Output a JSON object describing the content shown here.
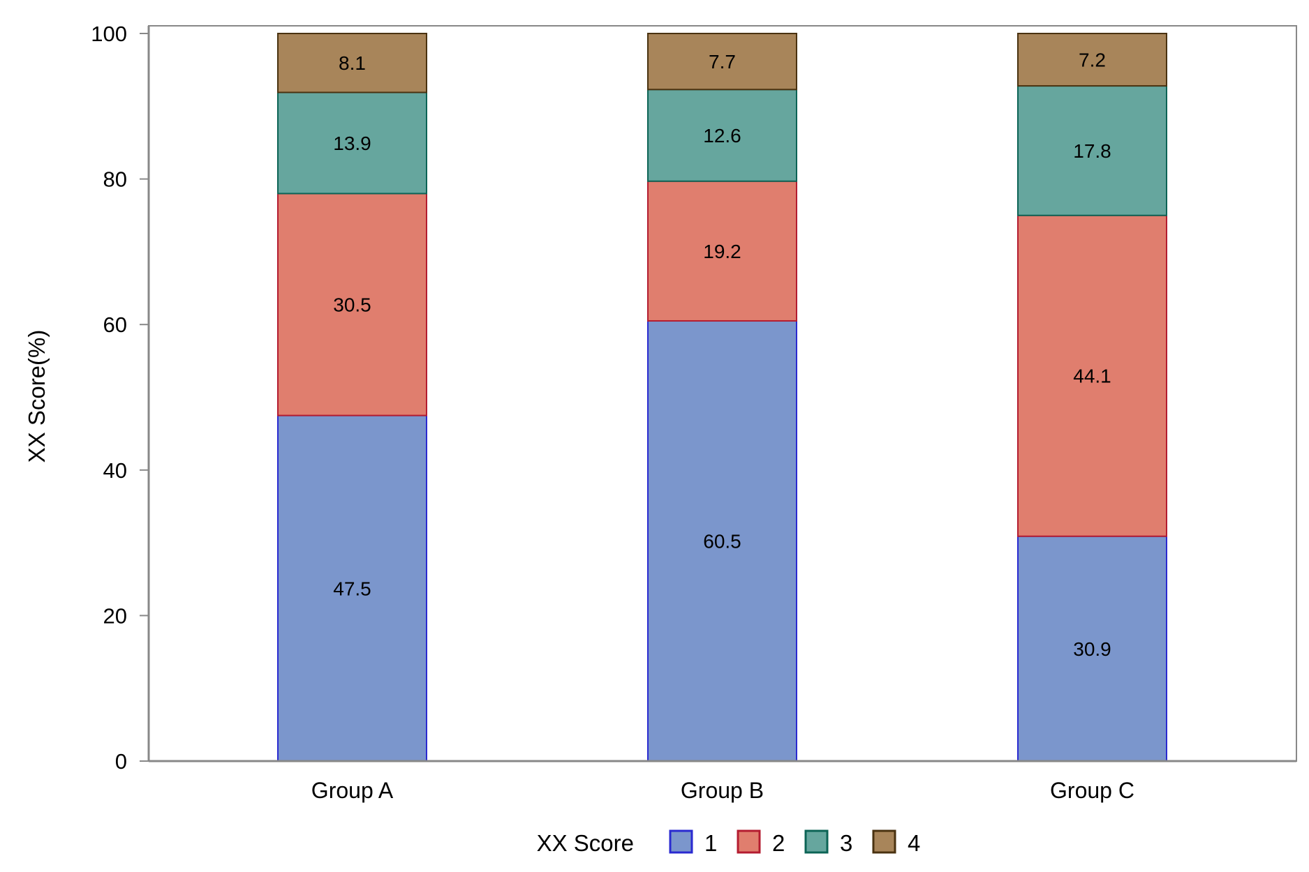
{
  "chart_data": {
    "type": "bar",
    "stacked": true,
    "title": "",
    "xlabel": "",
    "ylabel": "XX Score(%)",
    "ylim": [
      0,
      100
    ],
    "yticks": [
      0,
      20,
      40,
      60,
      80,
      100
    ],
    "grid": false,
    "categories": [
      "Group A",
      "Group B",
      "Group C"
    ],
    "legend": {
      "title": "XX Score",
      "placement": "bottom"
    },
    "series": [
      {
        "name": "1",
        "values": [
          47.5,
          60.5,
          30.9
        ],
        "fill": "#7b96cc",
        "stroke": "#2a2ad0"
      },
      {
        "name": "2",
        "values": [
          30.5,
          19.2,
          44.1
        ],
        "fill": "#e07e6e",
        "stroke": "#b41c30"
      },
      {
        "name": "3",
        "values": [
          13.9,
          12.6,
          17.8
        ],
        "fill": "#66a69e",
        "stroke": "#0c6456"
      },
      {
        "name": "4",
        "values": [
          8.1,
          7.7,
          7.2
        ],
        "fill": "#a8855a",
        "stroke": "#4a3210"
      }
    ]
  }
}
